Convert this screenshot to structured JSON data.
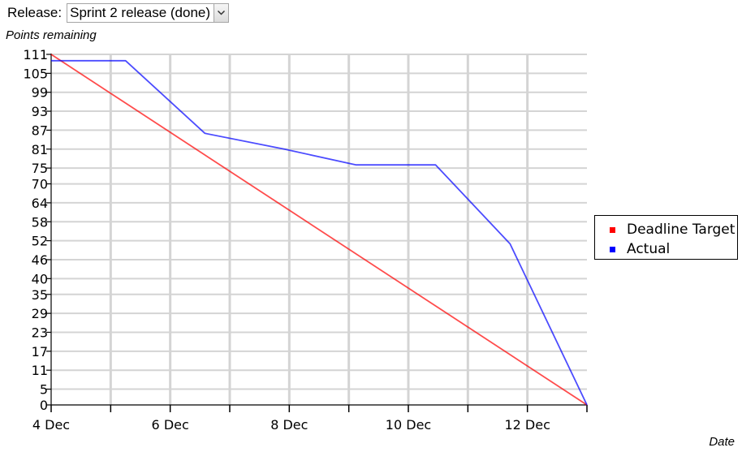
{
  "release": {
    "label": "Release:",
    "selected": "Sprint 2 release (done)"
  },
  "chart_data": {
    "type": "line",
    "ylabel": "Points remaining",
    "xlabel": "Date",
    "ylim": [
      0,
      111
    ],
    "xlim": [
      "2013-12-04",
      "2013-12-13"
    ],
    "y_ticks": [
      0,
      5,
      11,
      17,
      23,
      29,
      35,
      40,
      46,
      52,
      58,
      64,
      70,
      75,
      81,
      87,
      93,
      99,
      105,
      111
    ],
    "x_ticks": [
      "4 Dec",
      "6 Dec",
      "8 Dec",
      "10 Dec",
      "12 Dec"
    ],
    "grid": true,
    "legend_position": "right",
    "series": [
      {
        "name": "Deadline Target",
        "color": "#ff0000",
        "points": [
          {
            "x": "2013-12-04",
            "y": 111
          },
          {
            "x": "2013-12-13",
            "y": 0
          }
        ]
      },
      {
        "name": "Actual",
        "color": "#0000ff",
        "points": [
          {
            "x": "2013-12-04",
            "y": 109
          },
          {
            "x": "2013-12-05 06:00",
            "y": 109
          },
          {
            "x": "2013-12-06 14:00",
            "y": 86
          },
          {
            "x": "2013-12-07 22:00",
            "y": 81
          },
          {
            "x": "2013-12-09 03:00",
            "y": 76
          },
          {
            "x": "2013-12-10 11:00",
            "y": 76
          },
          {
            "x": "2013-12-11 17:00",
            "y": 51
          },
          {
            "x": "2013-12-13",
            "y": 0
          }
        ]
      }
    ]
  }
}
